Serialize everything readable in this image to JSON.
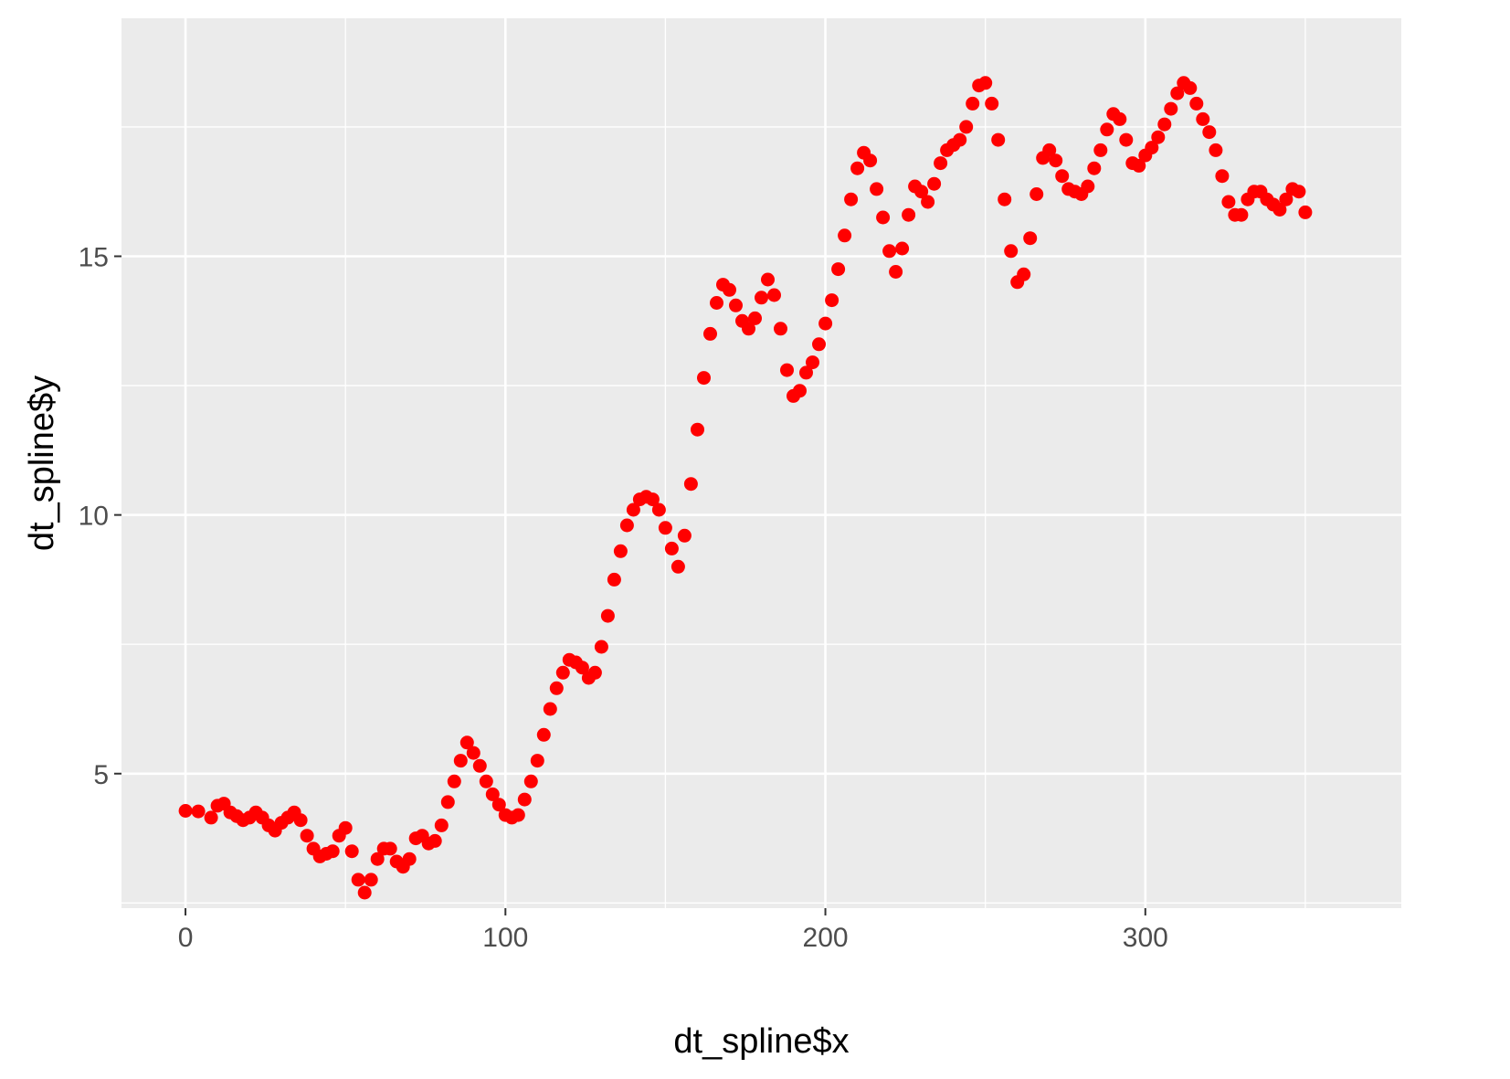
{
  "chart_data": {
    "type": "scatter",
    "xlabel": "dt_spline$x",
    "ylabel": "dt_spline$y",
    "xlim": [
      -20,
      380
    ],
    "ylim": [
      2.4,
      19.6
    ],
    "x_ticks": [
      0,
      100,
      200,
      300
    ],
    "y_ticks": [
      5,
      10,
      15
    ],
    "x_minor": [
      50,
      150,
      250,
      350
    ],
    "y_minor": [
      2.5,
      7.5,
      12.5,
      17.5
    ],
    "grid": true,
    "theme": "ggplot2 grey",
    "panel_color": "#ebebeb",
    "point_color": "#ff0000",
    "points": [
      [
        0,
        4.28
      ],
      [
        4,
        4.27
      ],
      [
        8,
        4.15
      ],
      [
        10,
        4.38
      ],
      [
        12,
        4.42
      ],
      [
        14,
        4.25
      ],
      [
        16,
        4.18
      ],
      [
        18,
        4.1
      ],
      [
        20,
        4.15
      ],
      [
        22,
        4.25
      ],
      [
        24,
        4.15
      ],
      [
        26,
        4.0
      ],
      [
        28,
        3.9
      ],
      [
        30,
        4.05
      ],
      [
        32,
        4.15
      ],
      [
        34,
        4.25
      ],
      [
        36,
        4.1
      ],
      [
        38,
        3.8
      ],
      [
        40,
        3.55
      ],
      [
        42,
        3.4
      ],
      [
        44,
        3.45
      ],
      [
        46,
        3.5
      ],
      [
        48,
        3.8
      ],
      [
        50,
        3.95
      ],
      [
        52,
        3.5
      ],
      [
        54,
        2.95
      ],
      [
        56,
        2.7
      ],
      [
        58,
        2.95
      ],
      [
        60,
        3.35
      ],
      [
        62,
        3.55
      ],
      [
        64,
        3.55
      ],
      [
        66,
        3.3
      ],
      [
        68,
        3.2
      ],
      [
        70,
        3.35
      ],
      [
        72,
        3.75
      ],
      [
        74,
        3.8
      ],
      [
        76,
        3.65
      ],
      [
        78,
        3.7
      ],
      [
        80,
        4.0
      ],
      [
        82,
        4.45
      ],
      [
        84,
        4.85
      ],
      [
        86,
        5.25
      ],
      [
        88,
        5.6
      ],
      [
        90,
        5.4
      ],
      [
        92,
        5.15
      ],
      [
        94,
        4.85
      ],
      [
        96,
        4.6
      ],
      [
        98,
        4.4
      ],
      [
        100,
        4.2
      ],
      [
        102,
        4.15
      ],
      [
        104,
        4.2
      ],
      [
        106,
        4.5
      ],
      [
        108,
        4.85
      ],
      [
        110,
        5.25
      ],
      [
        112,
        5.75
      ],
      [
        114,
        6.25
      ],
      [
        116,
        6.65
      ],
      [
        118,
        6.95
      ],
      [
        120,
        7.2
      ],
      [
        122,
        7.15
      ],
      [
        124,
        7.05
      ],
      [
        126,
        6.85
      ],
      [
        128,
        6.95
      ],
      [
        130,
        7.45
      ],
      [
        132,
        8.05
      ],
      [
        134,
        8.75
      ],
      [
        136,
        9.3
      ],
      [
        138,
        9.8
      ],
      [
        140,
        10.1
      ],
      [
        142,
        10.3
      ],
      [
        144,
        10.35
      ],
      [
        146,
        10.3
      ],
      [
        148,
        10.1
      ],
      [
        150,
        9.75
      ],
      [
        152,
        9.35
      ],
      [
        154,
        9.0
      ],
      [
        156,
        9.6
      ],
      [
        158,
        10.6
      ],
      [
        160,
        11.65
      ],
      [
        162,
        12.65
      ],
      [
        164,
        13.5
      ],
      [
        166,
        14.1
      ],
      [
        168,
        14.45
      ],
      [
        170,
        14.35
      ],
      [
        172,
        14.05
      ],
      [
        174,
        13.75
      ],
      [
        176,
        13.6
      ],
      [
        178,
        13.8
      ],
      [
        180,
        14.2
      ],
      [
        182,
        14.55
      ],
      [
        184,
        14.25
      ],
      [
        186,
        13.6
      ],
      [
        188,
        12.8
      ],
      [
        190,
        12.3
      ],
      [
        192,
        12.4
      ],
      [
        194,
        12.75
      ],
      [
        196,
        12.95
      ],
      [
        198,
        13.3
      ],
      [
        200,
        13.7
      ],
      [
        202,
        14.15
      ],
      [
        204,
        14.75
      ],
      [
        206,
        15.4
      ],
      [
        208,
        16.1
      ],
      [
        210,
        16.7
      ],
      [
        212,
        17.0
      ],
      [
        214,
        16.85
      ],
      [
        216,
        16.3
      ],
      [
        218,
        15.75
      ],
      [
        220,
        15.1
      ],
      [
        222,
        14.7
      ],
      [
        224,
        15.15
      ],
      [
        226,
        15.8
      ],
      [
        228,
        16.35
      ],
      [
        230,
        16.25
      ],
      [
        232,
        16.05
      ],
      [
        234,
        16.4
      ],
      [
        236,
        16.8
      ],
      [
        238,
        17.05
      ],
      [
        240,
        17.15
      ],
      [
        242,
        17.25
      ],
      [
        244,
        17.5
      ],
      [
        246,
        17.95
      ],
      [
        248,
        18.3
      ],
      [
        250,
        18.35
      ],
      [
        252,
        17.95
      ],
      [
        254,
        17.25
      ],
      [
        256,
        16.1
      ],
      [
        258,
        15.1
      ],
      [
        260,
        14.5
      ],
      [
        262,
        14.65
      ],
      [
        264,
        15.35
      ],
      [
        266,
        16.2
      ],
      [
        268,
        16.9
      ],
      [
        270,
        17.05
      ],
      [
        272,
        16.85
      ],
      [
        274,
        16.55
      ],
      [
        276,
        16.3
      ],
      [
        278,
        16.25
      ],
      [
        280,
        16.2
      ],
      [
        282,
        16.35
      ],
      [
        284,
        16.7
      ],
      [
        286,
        17.05
      ],
      [
        288,
        17.45
      ],
      [
        290,
        17.75
      ],
      [
        292,
        17.65
      ],
      [
        294,
        17.25
      ],
      [
        296,
        16.8
      ],
      [
        298,
        16.75
      ],
      [
        300,
        16.95
      ],
      [
        302,
        17.1
      ],
      [
        304,
        17.3
      ],
      [
        306,
        17.55
      ],
      [
        308,
        17.85
      ],
      [
        310,
        18.15
      ],
      [
        312,
        18.35
      ],
      [
        314,
        18.25
      ],
      [
        316,
        17.95
      ],
      [
        318,
        17.65
      ],
      [
        320,
        17.4
      ],
      [
        322,
        17.05
      ],
      [
        324,
        16.55
      ],
      [
        326,
        16.05
      ],
      [
        328,
        15.8
      ],
      [
        330,
        15.8
      ],
      [
        332,
        16.1
      ],
      [
        334,
        16.25
      ],
      [
        336,
        16.25
      ],
      [
        338,
        16.1
      ],
      [
        340,
        16.0
      ],
      [
        342,
        15.9
      ],
      [
        344,
        16.1
      ],
      [
        346,
        16.3
      ],
      [
        348,
        16.25
      ],
      [
        350,
        15.85
      ]
    ]
  }
}
